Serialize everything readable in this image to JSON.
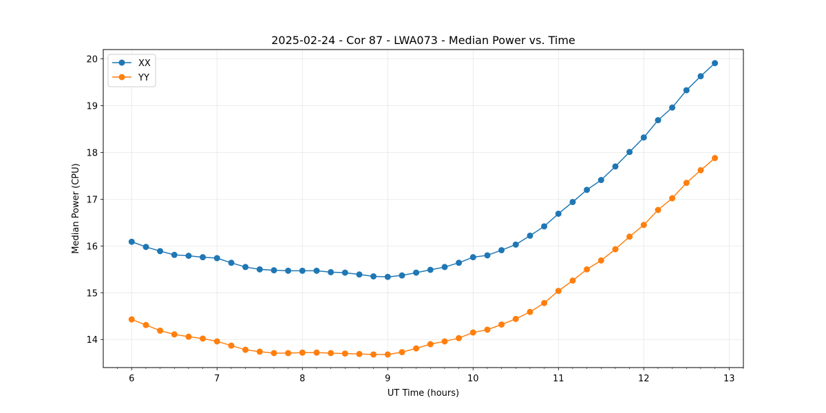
{
  "chart_data": {
    "type": "line",
    "title": "2025-02-24 - Cor 87 - LWA073 - Median Power vs. Time",
    "xlabel": "UT Time (hours)",
    "ylabel": "Median Power (CPU)",
    "xlim": [
      5.667,
      13.167
    ],
    "ylim": [
      13.4,
      20.2
    ],
    "xticks": [
      6,
      7,
      8,
      9,
      10,
      11,
      12,
      13
    ],
    "yticks": [
      14,
      15,
      16,
      17,
      18,
      19,
      20
    ],
    "grid": true,
    "legend_position": "upper-left",
    "x": [
      6.0,
      6.167,
      6.333,
      6.5,
      6.667,
      6.833,
      7.0,
      7.167,
      7.333,
      7.5,
      7.667,
      7.833,
      8.0,
      8.167,
      8.333,
      8.5,
      8.667,
      8.833,
      9.0,
      9.167,
      9.333,
      9.5,
      9.667,
      9.833,
      10.0,
      10.167,
      10.333,
      10.5,
      10.667,
      10.833,
      11.0,
      11.167,
      11.333,
      11.5,
      11.667,
      11.833,
      12.0,
      12.167,
      12.333,
      12.5,
      12.667,
      12.833
    ],
    "series": [
      {
        "name": "XX",
        "color": "#1f77b4",
        "values": [
          16.09,
          15.98,
          15.89,
          15.81,
          15.79,
          15.76,
          15.74,
          15.64,
          15.55,
          15.5,
          15.48,
          15.47,
          15.47,
          15.47,
          15.44,
          15.43,
          15.39,
          15.35,
          15.34,
          15.37,
          15.43,
          15.49,
          15.55,
          15.64,
          15.76,
          15.8,
          15.91,
          16.03,
          16.22,
          16.42,
          16.69,
          16.94,
          17.2,
          17.41,
          17.7,
          18.01,
          18.32,
          18.69,
          18.96,
          19.33,
          19.63,
          19.91
        ]
      },
      {
        "name": "YY",
        "color": "#ff7f0e",
        "values": [
          14.43,
          14.31,
          14.19,
          14.11,
          14.06,
          14.02,
          13.96,
          13.87,
          13.78,
          13.74,
          13.71,
          13.71,
          13.72,
          13.72,
          13.71,
          13.7,
          13.69,
          13.68,
          13.68,
          13.73,
          13.81,
          13.9,
          13.96,
          14.03,
          14.15,
          14.21,
          14.32,
          14.44,
          14.59,
          14.78,
          15.04,
          15.26,
          15.5,
          15.69,
          15.93,
          16.2,
          16.45,
          16.77,
          17.02,
          17.35,
          17.62,
          17.88
        ]
      }
    ]
  }
}
